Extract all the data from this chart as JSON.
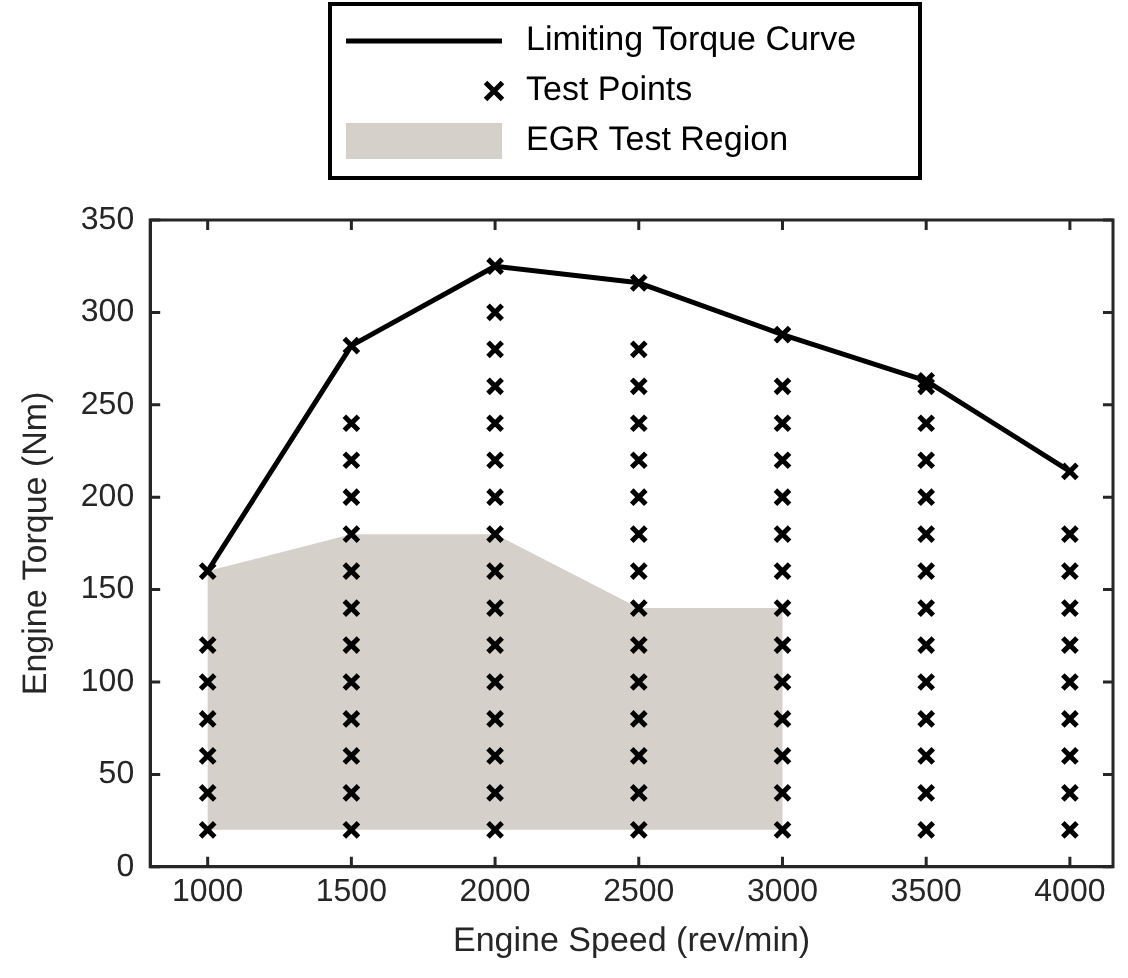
{
  "chart_data": {
    "type": "scatter",
    "xlabel": "Engine Speed (rev/min)",
    "ylabel": "Engine Torque (Nm)",
    "xlim": [
      800,
      4150
    ],
    "xticks": [
      1000,
      1500,
      2000,
      2500,
      3000,
      3500,
      4000
    ],
    "ylim": [
      0,
      350
    ],
    "yticks": [
      0,
      50,
      100,
      150,
      200,
      250,
      300,
      350
    ],
    "grid": false,
    "legend": "top",
    "series": [
      {
        "name": "Limiting Torque Curve",
        "type": "line",
        "color": "#000000",
        "line_style": "solid",
        "x": [
          1000,
          1500,
          2000,
          2500,
          3000,
          3500,
          4000
        ],
        "values": [
          160,
          282,
          325,
          316,
          288,
          263,
          214
        ]
      },
      {
        "name": "Test Points",
        "type": "scatter",
        "marker": "cross",
        "color": "#000000",
        "x": [
          1000,
          1000,
          1000,
          1000,
          1000,
          1000,
          1000,
          1500,
          1500,
          1500,
          1500,
          1500,
          1500,
          1500,
          1500,
          1500,
          1500,
          1500,
          1500,
          1500,
          2000,
          2000,
          2000,
          2000,
          2000,
          2000,
          2000,
          2000,
          2000,
          2000,
          2000,
          2000,
          2000,
          2000,
          2000,
          2000,
          2500,
          2500,
          2500,
          2500,
          2500,
          2500,
          2500,
          2500,
          2500,
          2500,
          2500,
          2500,
          2500,
          2500,
          2500,
          3000,
          3000,
          3000,
          3000,
          3000,
          3000,
          3000,
          3000,
          3000,
          3000,
          3000,
          3000,
          3000,
          3000,
          3500,
          3500,
          3500,
          3500,
          3500,
          3500,
          3500,
          3500,
          3500,
          3500,
          3500,
          3500,
          3500,
          3500,
          4000,
          4000,
          4000,
          4000,
          4000,
          4000,
          4000,
          4000,
          4000,
          4000
        ],
        "values": [
          20,
          40,
          60,
          80,
          100,
          120,
          160,
          20,
          40,
          60,
          80,
          100,
          120,
          140,
          160,
          180,
          200,
          220,
          240,
          282,
          20,
          40,
          60,
          80,
          100,
          120,
          140,
          160,
          180,
          200,
          220,
          240,
          260,
          280,
          300,
          325,
          20,
          40,
          60,
          80,
          100,
          120,
          140,
          160,
          180,
          200,
          220,
          240,
          260,
          280,
          316,
          20,
          40,
          60,
          80,
          100,
          120,
          140,
          160,
          180,
          200,
          220,
          240,
          260,
          288,
          20,
          40,
          60,
          80,
          100,
          120,
          140,
          160,
          180,
          200,
          220,
          240,
          260,
          263,
          20,
          40,
          60,
          80,
          100,
          120,
          140,
          160,
          180,
          214
        ]
      },
      {
        "name": "EGR Test Region",
        "type": "area",
        "color": "#d5d1ca",
        "x": [
          1000,
          1500,
          2000,
          2500,
          3000,
          3000,
          1000
        ],
        "values": [
          160,
          180,
          180,
          140,
          140,
          20,
          20
        ]
      }
    ]
  }
}
